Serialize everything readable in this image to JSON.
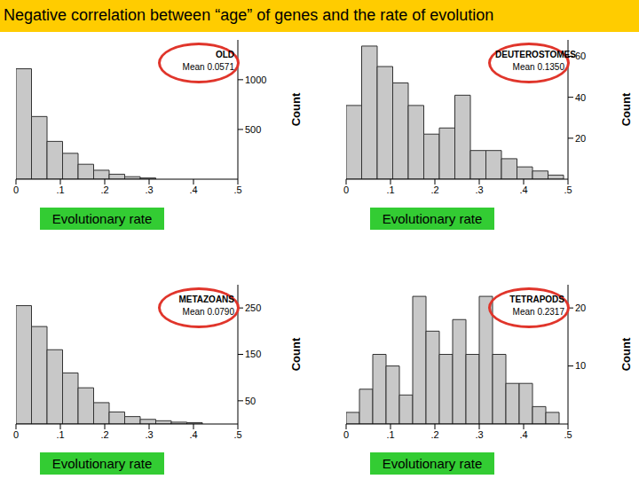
{
  "title": "Negative correlation between “age” of genes and the rate of evolution",
  "chart_data": [
    {
      "type": "histogram",
      "title": "OLD",
      "annotation": "Mean 0.0571",
      "bins": [
        0,
        0.035,
        0.07,
        0.105,
        0.14,
        0.175,
        0.21,
        0.245,
        0.28,
        0.315
      ],
      "values": [
        1110,
        630,
        380,
        260,
        150,
        90,
        50,
        25,
        12
      ],
      "color": "#c8c8c8",
      "xlabel": "Evolutionary rate",
      "ylabel": "Count",
      "xlim": [
        0,
        0.5
      ],
      "xticks": [
        0,
        {
          "value": 0.1,
          "label": ".1"
        },
        {
          "value": 0.2,
          "label": ".2"
        },
        {
          "value": 0.3,
          "label": ".3"
        },
        {
          "value": 0.4,
          "label": ".4"
        },
        {
          "value": 0.5,
          "label": ".5"
        }
      ],
      "ylim": [
        0,
        1400
      ],
      "yticks": [
        500,
        1000
      ],
      "grid": false
    },
    {
      "type": "histogram",
      "title": "DEUTEROSTOMES",
      "annotation": "Mean 0.1350",
      "bins": [
        0,
        0.035,
        0.07,
        0.105,
        0.14,
        0.175,
        0.21,
        0.245,
        0.28,
        0.315,
        0.35,
        0.385,
        0.42,
        0.455,
        0.49
      ],
      "values": [
        36,
        65,
        55,
        47,
        36,
        22,
        25,
        41,
        14,
        14,
        10,
        6,
        4,
        2
      ],
      "color": "#c8c8c8",
      "xlabel": "Evolutionary rate",
      "ylabel": "Count",
      "xlim": [
        0,
        0.5
      ],
      "xticks": [
        0,
        {
          "value": 0.1,
          "label": ".1"
        },
        {
          "value": 0.2,
          "label": ".2"
        },
        {
          "value": 0.3,
          "label": ".3"
        },
        {
          "value": 0.4,
          "label": ".4"
        },
        {
          "value": 0.5,
          "label": ".5"
        }
      ],
      "ylim": [
        0,
        68
      ],
      "yticks": [
        20,
        40,
        60
      ],
      "grid": false
    },
    {
      "type": "histogram",
      "title": "METAZOANS",
      "annotation": "Mean 0.0790",
      "bins": [
        0,
        0.035,
        0.07,
        0.105,
        0.14,
        0.175,
        0.21,
        0.245,
        0.28,
        0.315,
        0.35,
        0.385,
        0.42
      ],
      "values": [
        255,
        210,
        160,
        110,
        78,
        46,
        26,
        16,
        10,
        7,
        4,
        3
      ],
      "color": "#c8c8c8",
      "xlabel": "Evolutionary rate",
      "ylabel": "Count",
      "xlim": [
        0,
        0.5
      ],
      "xticks": [
        0,
        {
          "value": 0.1,
          "label": ".1"
        },
        {
          "value": 0.2,
          "label": ".2"
        },
        {
          "value": 0.3,
          "label": ".3"
        },
        {
          "value": 0.4,
          "label": ".4"
        },
        {
          "value": 0.5,
          "label": ".5"
        }
      ],
      "ylim": [
        0,
        300
      ],
      "yticks": [
        50,
        150,
        250
      ],
      "grid": false
    },
    {
      "type": "histogram",
      "title": "TETRAPODS",
      "annotation": "Mean 0.2317",
      "bins": [
        0,
        0.03,
        0.06,
        0.09,
        0.12,
        0.15,
        0.18,
        0.21,
        0.24,
        0.27,
        0.3,
        0.33,
        0.36,
        0.39,
        0.42,
        0.45,
        0.48
      ],
      "values": [
        2,
        6,
        12,
        10,
        5,
        22,
        16,
        12,
        18,
        12,
        22,
        12,
        7,
        7,
        3,
        2
      ],
      "color": "#c8c8c8",
      "xlabel": "Evolutionary rate",
      "ylabel": "Count",
      "xlim": [
        0,
        0.5
      ],
      "xticks": [
        0,
        {
          "value": 0.1,
          "label": ".1"
        },
        {
          "value": 0.2,
          "label": ".2"
        },
        {
          "value": 0.3,
          "label": ".3"
        },
        {
          "value": 0.4,
          "label": ".4"
        },
        {
          "value": 0.5,
          "label": ".5"
        }
      ],
      "ylim": [
        0,
        24
      ],
      "yticks": [
        10,
        20
      ],
      "grid": false
    }
  ]
}
